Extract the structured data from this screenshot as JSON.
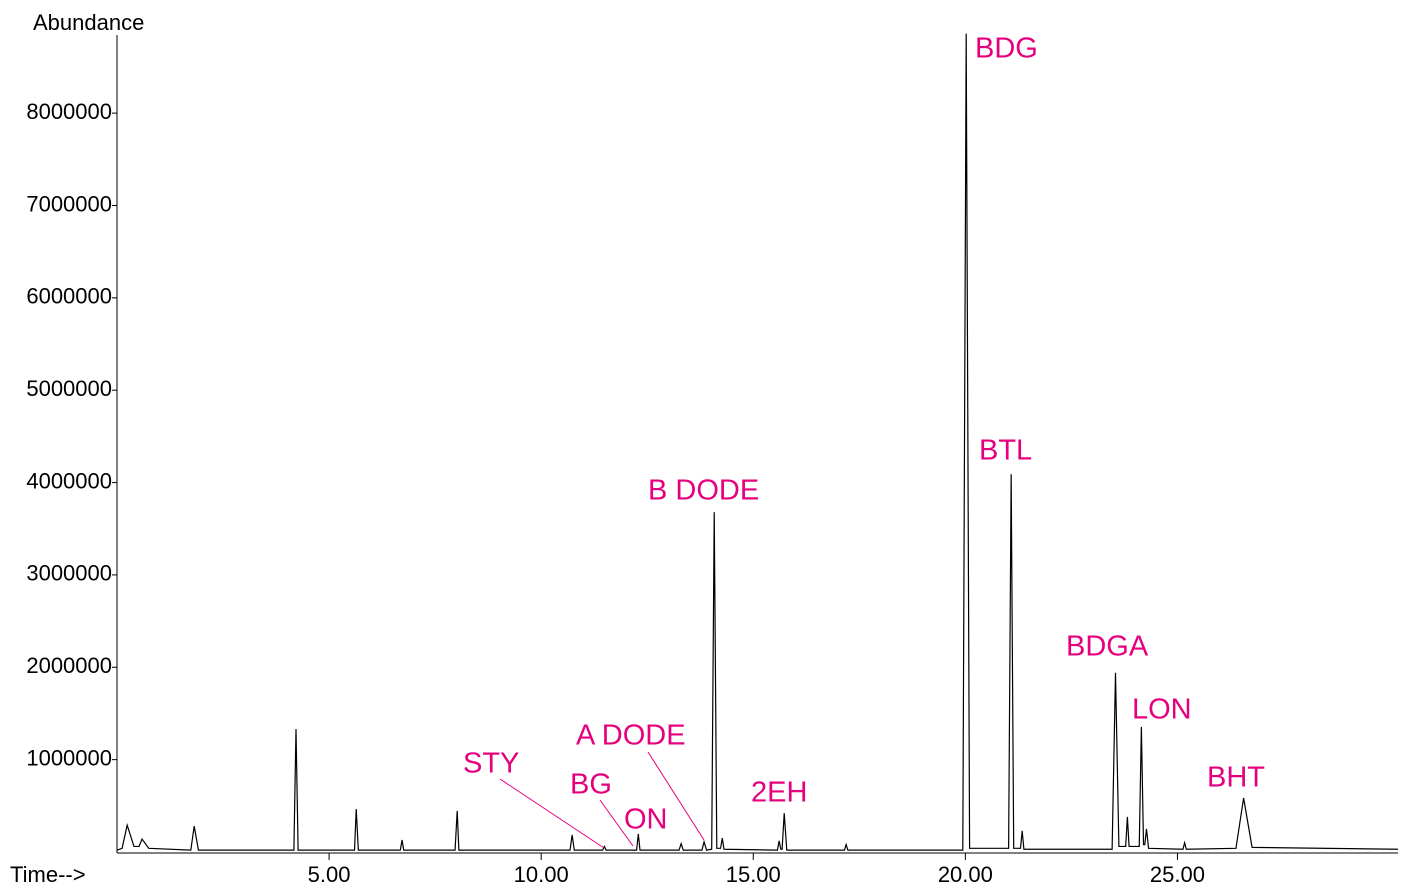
{
  "chart_data": {
    "type": "line",
    "y_label": "Abundance",
    "x_label": "Time-->",
    "xlim": [
      0,
      30.2
    ],
    "ylim": [
      0,
      8900000
    ],
    "xticks": [
      {
        "value": 5,
        "label": "5.00"
      },
      {
        "value": 10,
        "label": "10.00"
      },
      {
        "value": 15,
        "label": "15.00"
      },
      {
        "value": 20,
        "label": "20.00"
      },
      {
        "value": 25,
        "label": "25.00"
      }
    ],
    "yticks": [
      1000000,
      2000000,
      3000000,
      4000000,
      5000000,
      6000000,
      7000000,
      8000000
    ],
    "color": "#000000",
    "annotation_color": "#e6007e",
    "x": [
      0,
      0.12,
      0.24,
      0.4,
      0.52,
      0.59,
      0.75,
      1.74,
      1.82,
      1.92,
      4.17,
      4.22,
      4.27,
      5.6,
      5.64,
      5.69,
      6.68,
      6.72,
      6.76,
      7.97,
      8.02,
      8.06,
      10.68,
      10.73,
      10.78,
      11.45,
      11.49,
      11.53,
      12.25,
      12.29,
      12.33,
      13.25,
      13.3,
      13.35,
      13.79,
      13.84,
      13.9,
      14.02,
      14.08,
      14.14,
      14.23,
      14.27,
      14.31,
      15.57,
      15.61,
      15.65,
      15.68,
      15.73,
      15.79,
      17.15,
      17.19,
      17.23,
      19.94,
      20.02,
      20.1,
      21.02,
      21.08,
      21.14,
      21.3,
      21.34,
      21.38,
      23.46,
      23.54,
      23.62,
      23.78,
      23.82,
      23.86,
      24.1,
      24.15,
      24.2,
      24.23,
      24.27,
      24.32,
      25.13,
      25.17,
      25.21,
      26.38,
      26.56,
      26.76,
      30.2
    ],
    "values": [
      20000,
      40000,
      290000,
      60000,
      60000,
      140000,
      40000,
      20000,
      280000,
      20000,
      20000,
      1330000,
      20000,
      20000,
      465000,
      20000,
      20000,
      130000,
      20000,
      20000,
      445000,
      20000,
      20000,
      185000,
      20000,
      20000,
      60000,
      20000,
      20000,
      195000,
      20000,
      20000,
      90000,
      20000,
      20000,
      110000,
      20000,
      30000,
      3680000,
      40000,
      40000,
      150000,
      30000,
      20000,
      120000,
      30000,
      30000,
      420000,
      20000,
      20000,
      80000,
      20000,
      20000,
      8860000,
      40000,
      40000,
      4090000,
      40000,
      40000,
      230000,
      30000,
      30000,
      1940000,
      60000,
      60000,
      380000,
      60000,
      60000,
      1355000,
      80000,
      80000,
      250000,
      40000,
      30000,
      100000,
      30000,
      40000,
      585000,
      50000,
      30000
    ],
    "annotations": [
      "BDG",
      "BTL",
      "B DODE",
      "BDGA",
      "LON",
      "BHT",
      "2EH",
      "A DODE",
      "STY",
      "BG",
      "ON"
    ]
  }
}
